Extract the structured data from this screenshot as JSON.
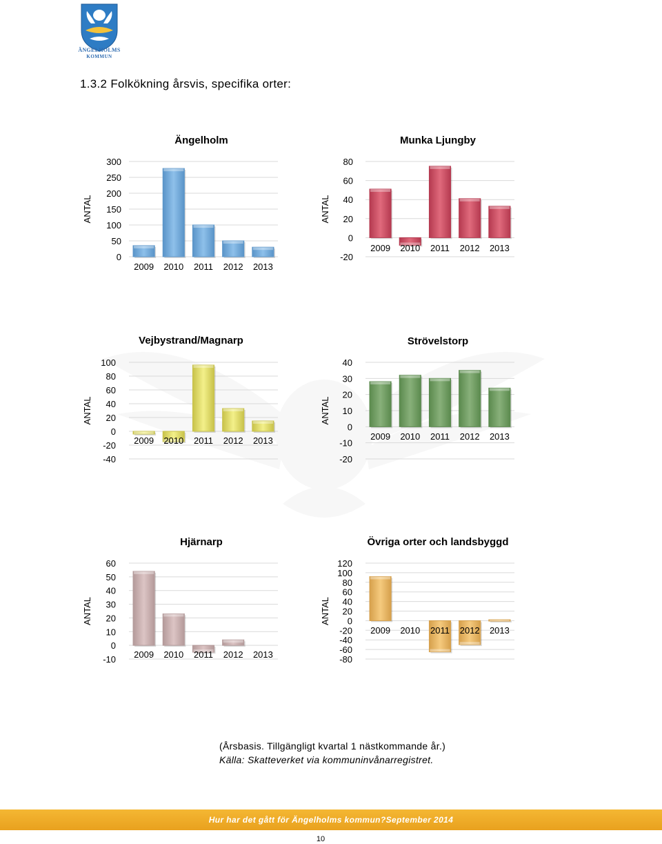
{
  "logo": {
    "name_line": "ÄNGELHOLMS",
    "sub_line": "KOMMUN"
  },
  "heading": "1.3.2 Folkökning årsvis, specifika orter:",
  "note": "(Årsbasis. Tillgängligt kvartal 1 nästkommande år.)",
  "source": "Källa: Skatteverket via kommuninvånarregistret.",
  "footer": "Hur har det gått för Ängelholms kommun?September 2014",
  "page_number": "10",
  "chart_data": [
    {
      "type": "bar",
      "title": "Ängelholm",
      "ylabel": "ANTAL",
      "categories": [
        "2009",
        "2010",
        "2011",
        "2012",
        "2013"
      ],
      "values": [
        35,
        278,
        100,
        50,
        30
      ],
      "ylim": [
        0,
        300
      ],
      "yticks": [
        0,
        50,
        100,
        150,
        200,
        250,
        300
      ],
      "color": "#8ec0ea",
      "color_dark": "#5a94c8",
      "grid": true
    },
    {
      "type": "bar",
      "title": "Munka Ljungby",
      "ylabel": "ANTAL",
      "categories": [
        "2009",
        "2010",
        "2011",
        "2012",
        "2013"
      ],
      "values": [
        51,
        -8,
        75,
        41,
        33
      ],
      "ylim": [
        -20,
        80
      ],
      "yticks": [
        -20,
        0,
        20,
        40,
        60,
        80
      ],
      "color": "#e06a7c",
      "color_dark": "#b53a50",
      "grid": true
    },
    {
      "type": "bar",
      "title": "Vejbystrand/Magnarp",
      "ylabel": "ANTAL",
      "categories": [
        "2009",
        "2010",
        "2011",
        "2012",
        "2013"
      ],
      "values": [
        -4,
        -15,
        96,
        33,
        15
      ],
      "ylim": [
        -40,
        100
      ],
      "yticks": [
        -40,
        -20,
        0,
        20,
        40,
        60,
        80,
        100
      ],
      "color": "#f3f08a",
      "color_dark": "#c8c24a",
      "grid": true
    },
    {
      "type": "bar",
      "title": "Strövelstorp",
      "ylabel": "ANTAL",
      "categories": [
        "2009",
        "2010",
        "2011",
        "2012",
        "2013"
      ],
      "values": [
        28,
        32,
        30,
        35,
        24
      ],
      "ylim": [
        -20,
        40
      ],
      "yticks": [
        -20,
        -10,
        0,
        10,
        20,
        30,
        40
      ],
      "color": "#88b07a",
      "color_dark": "#5b8a4e",
      "grid": true
    },
    {
      "type": "bar",
      "title": "Hjärnarp",
      "ylabel": "ANTAL",
      "categories": [
        "2009",
        "2010",
        "2011",
        "2012",
        "2013"
      ],
      "values": [
        54,
        23,
        -5,
        4,
        0
      ],
      "ylim": [
        -10,
        60
      ],
      "yticks": [
        -10,
        0,
        10,
        20,
        30,
        40,
        50,
        60
      ],
      "color": "#dcc4c4",
      "color_dark": "#b49a9a",
      "grid": true
    },
    {
      "type": "bar",
      "title": "Övriga orter och landsbyggd",
      "ylabel": "ANTAL",
      "categories": [
        "2009",
        "2010",
        "2011",
        "2012",
        "2013"
      ],
      "values": [
        92,
        0,
        -65,
        -50,
        2
      ],
      "ylim": [
        -80,
        120
      ],
      "yticks": [
        -80,
        -60,
        -40,
        -20,
        0,
        20,
        40,
        60,
        80,
        100,
        120
      ],
      "color": "#f5ca7e",
      "color_dark": "#d6a04c",
      "grid": true
    }
  ]
}
